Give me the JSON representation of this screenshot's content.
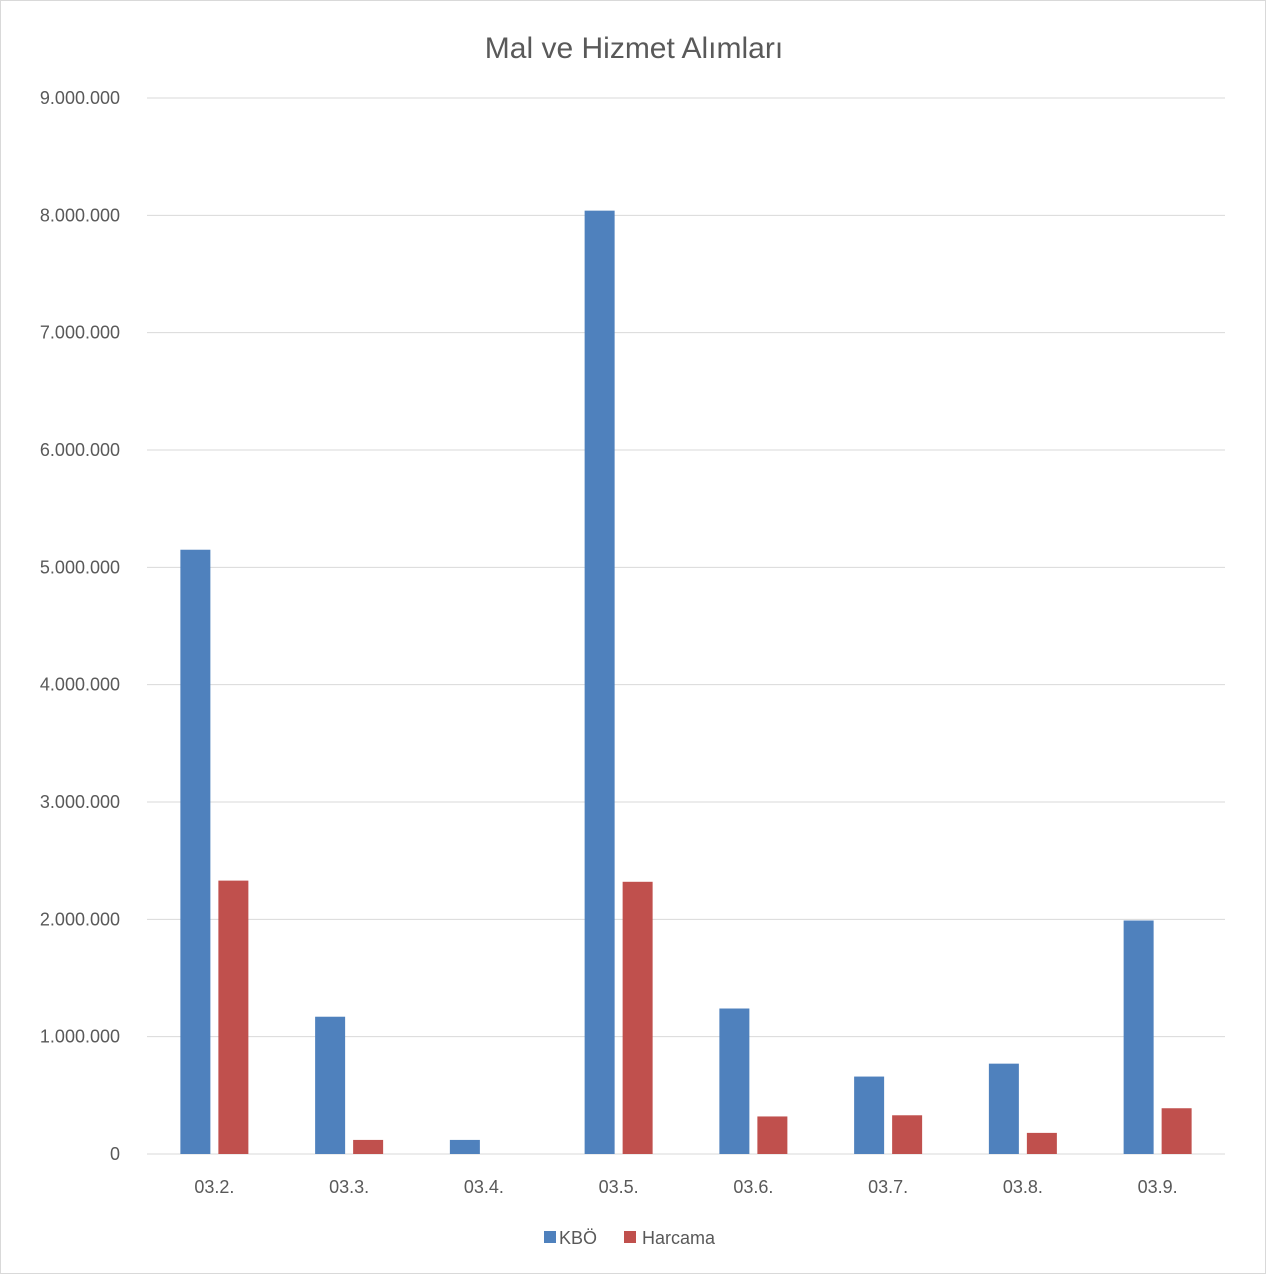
{
  "chart_data": {
    "type": "bar",
    "title": "Mal ve Hizmet Alımları",
    "xlabel": "",
    "ylabel": "",
    "categories": [
      "03.2.",
      "03.3.",
      "03.4.",
      "03.5.",
      "03.6.",
      "03.7.",
      "03.8.",
      "03.9."
    ],
    "series": [
      {
        "name": "KBÖ",
        "color": "#4f81bd",
        "values": [
          5150000,
          1170000,
          120000,
          8040000,
          1240000,
          660000,
          770000,
          1990000
        ]
      },
      {
        "name": "Harcama",
        "color": "#c0504d",
        "values": [
          2330000,
          120000,
          0,
          2320000,
          320000,
          330000,
          180000,
          390000
        ]
      }
    ],
    "ylim": [
      0,
      9000000
    ],
    "ytick_values": [
      0,
      1000000,
      2000000,
      3000000,
      4000000,
      5000000,
      6000000,
      7000000,
      8000000,
      9000000
    ],
    "ytick_labels": [
      "0",
      "1.000.000",
      "2.000.000",
      "3.000.000",
      "4.000.000",
      "5.000.000",
      "6.000.000",
      "7.000.000",
      "8.000.000",
      "9.000.000"
    ],
    "grid": true,
    "legend_position": "bottom-center"
  }
}
